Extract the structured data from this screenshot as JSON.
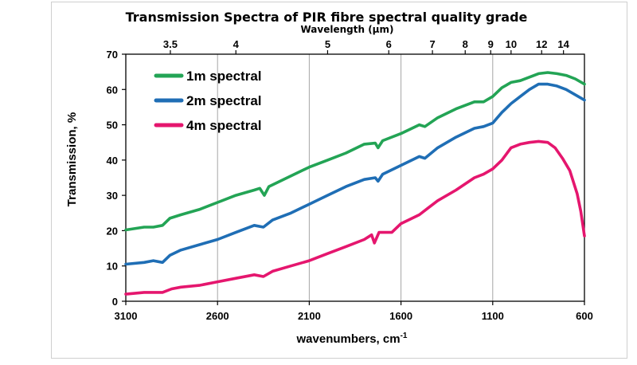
{
  "chart_data": {
    "type": "line",
    "title": "Transmission Spectra  of  PIR fibre spectral  quality grade",
    "top_axis_label": "Wavelength (µm)",
    "top_ticks": [
      "3.5",
      "4",
      "5",
      "6",
      "7",
      "8",
      "9",
      "10",
      "12",
      "14"
    ],
    "top_tick_values": [
      3.5,
      4,
      5,
      6,
      7,
      8,
      9,
      10,
      12,
      14
    ],
    "xlabel": "wavenumbers, cm",
    "xlabel_sup": "-1",
    "ylabel": "Transmission, %",
    "xlim": [
      3100,
      600
    ],
    "ylim": [
      0,
      70
    ],
    "x_ticks": [
      3100,
      2600,
      2100,
      1600,
      1100,
      600
    ],
    "y_ticks": [
      0,
      10,
      20,
      30,
      40,
      50,
      60,
      70
    ],
    "grid": "vertical",
    "legend_position": "top-left",
    "series": [
      {
        "name": "1m spectral",
        "color": "#23a455",
        "points": [
          [
            3100,
            20.2
          ],
          [
            3000,
            21.0
          ],
          [
            2950,
            21.0
          ],
          [
            2900,
            21.5
          ],
          [
            2860,
            23.5
          ],
          [
            2800,
            24.5
          ],
          [
            2700,
            26.0
          ],
          [
            2600,
            28.0
          ],
          [
            2500,
            30.0
          ],
          [
            2400,
            31.5
          ],
          [
            2370,
            32.0
          ],
          [
            2345,
            30.0
          ],
          [
            2320,
            32.5
          ],
          [
            2200,
            35.5
          ],
          [
            2100,
            38.0
          ],
          [
            2000,
            40.0
          ],
          [
            1900,
            42.0
          ],
          [
            1800,
            44.5
          ],
          [
            1740,
            44.8
          ],
          [
            1725,
            43.5
          ],
          [
            1700,
            45.5
          ],
          [
            1600,
            47.5
          ],
          [
            1500,
            50.0
          ],
          [
            1470,
            49.5
          ],
          [
            1400,
            52.0
          ],
          [
            1300,
            54.5
          ],
          [
            1200,
            56.5
          ],
          [
            1150,
            56.5
          ],
          [
            1100,
            58.0
          ],
          [
            1050,
            60.5
          ],
          [
            1000,
            62.0
          ],
          [
            950,
            62.5
          ],
          [
            900,
            63.5
          ],
          [
            850,
            64.5
          ],
          [
            800,
            64.8
          ],
          [
            750,
            64.5
          ],
          [
            700,
            64.0
          ],
          [
            650,
            63.0
          ],
          [
            600,
            61.5
          ]
        ]
      },
      {
        "name": "2m spectral",
        "color": "#1f6eb5",
        "points": [
          [
            3100,
            10.5
          ],
          [
            3000,
            11.0
          ],
          [
            2950,
            11.5
          ],
          [
            2900,
            11.0
          ],
          [
            2860,
            13.0
          ],
          [
            2800,
            14.5
          ],
          [
            2700,
            16.0
          ],
          [
            2600,
            17.5
          ],
          [
            2500,
            19.5
          ],
          [
            2400,
            21.5
          ],
          [
            2350,
            21.0
          ],
          [
            2300,
            23.0
          ],
          [
            2200,
            25.0
          ],
          [
            2100,
            27.5
          ],
          [
            2000,
            30.0
          ],
          [
            1900,
            32.5
          ],
          [
            1800,
            34.5
          ],
          [
            1740,
            35.0
          ],
          [
            1725,
            34.0
          ],
          [
            1700,
            36.0
          ],
          [
            1600,
            38.5
          ],
          [
            1500,
            41.0
          ],
          [
            1470,
            40.5
          ],
          [
            1400,
            43.5
          ],
          [
            1300,
            46.5
          ],
          [
            1200,
            49.0
          ],
          [
            1150,
            49.5
          ],
          [
            1100,
            50.5
          ],
          [
            1050,
            53.5
          ],
          [
            1000,
            56.0
          ],
          [
            950,
            58.0
          ],
          [
            900,
            60.0
          ],
          [
            850,
            61.5
          ],
          [
            800,
            61.5
          ],
          [
            750,
            61.0
          ],
          [
            700,
            60.0
          ],
          [
            650,
            58.5
          ],
          [
            600,
            57.0
          ]
        ]
      },
      {
        "name": "4m spectral",
        "color": "#e5166e",
        "points": [
          [
            3100,
            2.0
          ],
          [
            3000,
            2.5
          ],
          [
            2950,
            2.5
          ],
          [
            2900,
            2.5
          ],
          [
            2850,
            3.5
          ],
          [
            2800,
            4.0
          ],
          [
            2700,
            4.5
          ],
          [
            2600,
            5.5
          ],
          [
            2500,
            6.5
          ],
          [
            2400,
            7.5
          ],
          [
            2350,
            7.0
          ],
          [
            2300,
            8.5
          ],
          [
            2200,
            10.0
          ],
          [
            2100,
            11.5
          ],
          [
            2000,
            13.5
          ],
          [
            1900,
            15.5
          ],
          [
            1800,
            17.5
          ],
          [
            1760,
            18.8
          ],
          [
            1745,
            16.5
          ],
          [
            1720,
            19.5
          ],
          [
            1650,
            19.5
          ],
          [
            1600,
            22.0
          ],
          [
            1500,
            24.5
          ],
          [
            1450,
            26.5
          ],
          [
            1400,
            28.5
          ],
          [
            1300,
            31.5
          ],
          [
            1200,
            35.0
          ],
          [
            1150,
            36.0
          ],
          [
            1100,
            37.5
          ],
          [
            1050,
            40.0
          ],
          [
            1000,
            43.5
          ],
          [
            950,
            44.5
          ],
          [
            900,
            45.0
          ],
          [
            850,
            45.3
          ],
          [
            800,
            45.0
          ],
          [
            760,
            43.5
          ],
          [
            720,
            40.5
          ],
          [
            680,
            37.0
          ],
          [
            640,
            30.5
          ],
          [
            620,
            25.5
          ],
          [
            600,
            18.5
          ]
        ]
      }
    ]
  }
}
